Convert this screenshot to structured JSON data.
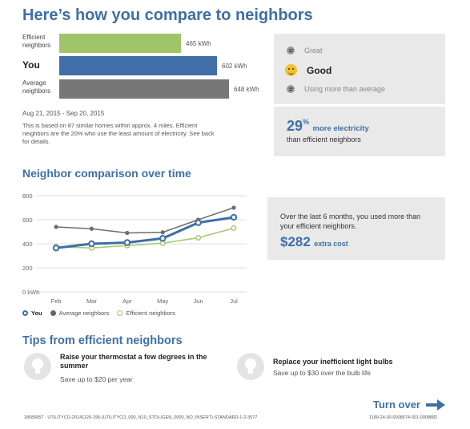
{
  "header": {
    "title": "Here’s how you compare to neighbors"
  },
  "comparison": {
    "bars": [
      {
        "label": "Efficient neighbors",
        "value_text": "465 kWh",
        "kwh": 465,
        "color": "#9fc46a"
      },
      {
        "label": "You",
        "value_text": "602 kWh",
        "kwh": 602,
        "color": "#3f6fa6"
      },
      {
        "label": "Average neighbors",
        "value_text": "648 kWh",
        "kwh": 648,
        "color": "#777777"
      }
    ],
    "dates": "Aug 21, 2015 - Sep 20, 2015",
    "description": "This is based on 87 similar homes within approx. 4 miles. Efficient neighbors are the 20% who use the least amount of electricity. See back for details."
  },
  "rating": {
    "great": "Great",
    "good": "Good",
    "above": "Using more than average",
    "icon_small": "neutral-face-icon",
    "icon_active": "smiley-face-icon"
  },
  "percent": {
    "value": "29",
    "sup": "%",
    "label": "more electricity",
    "sub": "than efficient neighbors"
  },
  "time_section": {
    "title": "Neighbor comparison over time"
  },
  "chart_data": {
    "type": "line",
    "categories": [
      "Feb",
      "Mar",
      "Apr",
      "May",
      "Jun",
      "Jul"
    ],
    "y_tick_labels": [
      "0 kWh",
      "200",
      "400",
      "600",
      "800"
    ],
    "y_ticks": [
      0,
      200,
      400,
      600,
      800
    ],
    "ylim": [
      0,
      800
    ],
    "series": [
      {
        "name": "You",
        "values": [
          365,
          400,
          410,
          445,
          575,
          620
        ],
        "color": "#3f6fa6"
      },
      {
        "name": "Average neighbors",
        "values": [
          540,
          525,
          490,
          495,
          600,
          700
        ],
        "color": "#6e6e6e"
      },
      {
        "name": "Efficient neighbors",
        "values": [
          375,
          365,
          385,
          405,
          450,
          530
        ],
        "color": "#a0c96a"
      }
    ]
  },
  "time_panel": {
    "text": "Over the last 6 months, you used more than your efficient neighbors.",
    "cost": "$282",
    "cost_label": "extra cost"
  },
  "tips": {
    "title": "Tips from efficient neighbors",
    "items": [
      {
        "head": "Raise your thermostat a few degrees in the summer",
        "sub": "Save up to $20 per year",
        "icon": "lightbulb-icon"
      },
      {
        "head": "Replace your inefficient light bulbs",
        "sub": "Save up to $30 over the bulb life",
        "icon": "lightbulb-icon"
      }
    ]
  },
  "turn_over": {
    "label": "Turn over",
    "icon": "arrow-right-icon"
  },
  "footer": {
    "left": "18586857 · UTILITYCO-20141126-195-(UTILITYCO_000_N10_STD)-(GEN_0000_NO_INSERT)-STANDARD-1-2-3577",
    "right": "1189-24-00-0008574-001-0008882"
  }
}
